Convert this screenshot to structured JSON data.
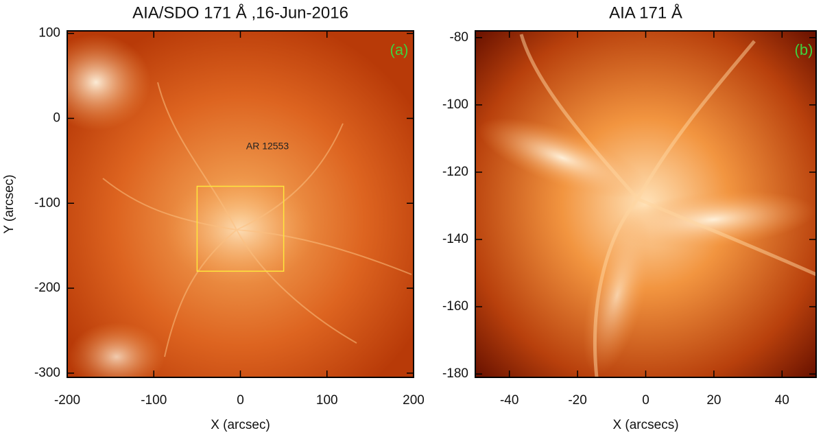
{
  "chart_data": [
    {
      "type": "image",
      "title": "AIA/SDO 171 Å ,16-Jun-2016",
      "x_label": "X (arcsec)",
      "y_label": "Y (arcsec)",
      "xlim": [
        -200,
        200
      ],
      "ylim": [
        -305,
        103
      ],
      "xticks": [
        -200,
        -100,
        0,
        100,
        200
      ],
      "yticks": [
        -300,
        -200,
        -100,
        0,
        100
      ],
      "panel_label": "(a)",
      "annotation": "AR 12553",
      "box": {
        "x": [
          -50,
          50
        ],
        "y": [
          -180,
          -80
        ],
        "color": "#ffe63c"
      }
    },
    {
      "type": "image",
      "title": "AIA 171 Å",
      "x_label": "X (arcsecs)",
      "xlim": [
        -50,
        50
      ],
      "ylim": [
        -181,
        -78
      ],
      "xticks": [
        -40,
        -20,
        0,
        20,
        40
      ],
      "yticks": [
        -180,
        -160,
        -140,
        -120,
        -100,
        -80
      ],
      "panel_label": "(b)"
    }
  ]
}
